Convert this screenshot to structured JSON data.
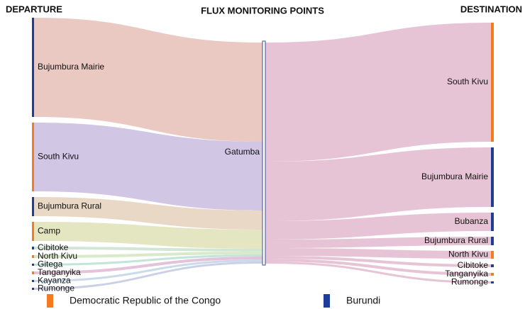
{
  "chart_data": {
    "type": "sankey",
    "columns": [
      "DEPARTURE",
      "FLUX MONITORING POINTS",
      "DESTINATION"
    ],
    "hub": {
      "name": "Gatumba",
      "color": "#3a4fa0"
    },
    "sources": [
      {
        "name": "Bujumbura Mairie",
        "value": 140,
        "color": "#1f3c99",
        "link_color": "#e9c6c0"
      },
      {
        "name": "South Kivu",
        "value": 97,
        "color": "#f47b20",
        "link_color": "#cfc3e3"
      },
      {
        "name": "Bujumbura Rural",
        "value": 27,
        "color": "#1f3c99",
        "link_color": "#e8d6c2"
      },
      {
        "name": "Camp",
        "value": 27,
        "color": "#f47b20",
        "link_color": "#e3e5bf"
      },
      {
        "name": "Cibitoke",
        "value": 4,
        "color": "#1f3c99",
        "link_color": "#cfe5d3"
      },
      {
        "name": "North Kivu",
        "value": 4,
        "color": "#f47b20",
        "link_color": "#d8e8c6"
      },
      {
        "name": "Gitega",
        "value": 3,
        "color": "#1f3c99",
        "link_color": "#bfe3d8"
      },
      {
        "name": "Tanganyika",
        "value": 4,
        "color": "#f47b20",
        "link_color": "#e3bfd8"
      },
      {
        "name": "Kayanza",
        "value": 3,
        "color": "#1f3c99",
        "link_color": "#c6d8ea"
      },
      {
        "name": "Rumonge",
        "value": 3,
        "color": "#1f3c99",
        "link_color": "#c8cde8"
      }
    ],
    "targets": [
      {
        "name": "South Kivu",
        "value": 168,
        "color": "#f47b20"
      },
      {
        "name": "Bujumbura Mairie",
        "value": 84,
        "color": "#1f3c99"
      },
      {
        "name": "Bubanza",
        "value": 26,
        "color": "#1f3c99"
      },
      {
        "name": "Bujumbura Rural",
        "value": 12,
        "color": "#1f3c99"
      },
      {
        "name": "North Kivu",
        "value": 11,
        "color": "#f47b20"
      },
      {
        "name": "Cibitoke",
        "value": 4,
        "color": "#1f3c99"
      },
      {
        "name": "Tanganyika",
        "value": 4,
        "color": "#f47b20"
      },
      {
        "name": "Rumonge",
        "value": 3,
        "color": "#1f3c99"
      }
    ],
    "target_link_color": "#e6c1d3",
    "legend": [
      {
        "name": "Democratic Republic of the Congo",
        "color": "#f47b20"
      },
      {
        "name": "Burundi",
        "color": "#1f3c99"
      }
    ]
  }
}
